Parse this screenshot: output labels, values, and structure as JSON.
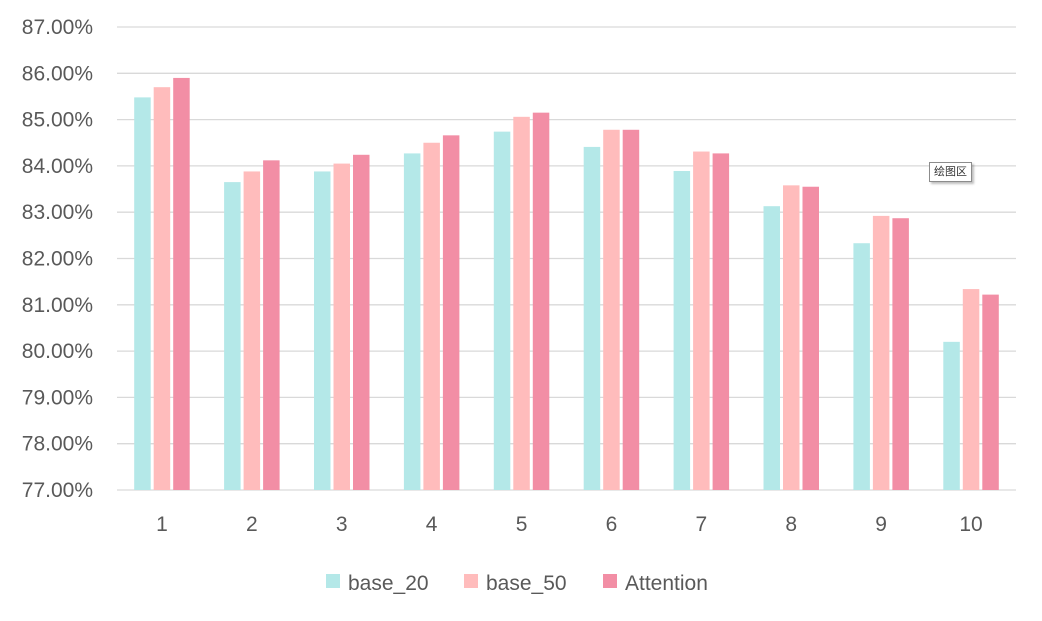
{
  "chart_data": {
    "type": "bar",
    "categories": [
      "1",
      "2",
      "3",
      "4",
      "5",
      "6",
      "7",
      "8",
      "9",
      "10"
    ],
    "series": [
      {
        "name": "base_20",
        "color": "#b4e8e8",
        "values": [
          85.48,
          83.65,
          83.88,
          84.27,
          84.74,
          84.41,
          83.89,
          83.13,
          82.33,
          80.2
        ]
      },
      {
        "name": "base_50",
        "color": "#ffbcbc",
        "values": [
          85.7,
          83.88,
          84.05,
          84.5,
          85.06,
          84.78,
          84.31,
          83.58,
          82.92,
          81.34
        ]
      },
      {
        "name": "Attention",
        "color": "#f28ea5",
        "values": [
          85.9,
          84.12,
          84.24,
          84.66,
          85.15,
          84.78,
          84.27,
          83.55,
          82.87,
          81.22
        ]
      }
    ],
    "ylim": [
      77,
      87
    ],
    "ytick_step": 1,
    "ytick_format": "percent_2dp",
    "title": "",
    "xlabel": "",
    "ylabel": "",
    "grid": "horizontal",
    "legend": "bottom-center"
  },
  "tooltip": {
    "text": "绘图区"
  }
}
